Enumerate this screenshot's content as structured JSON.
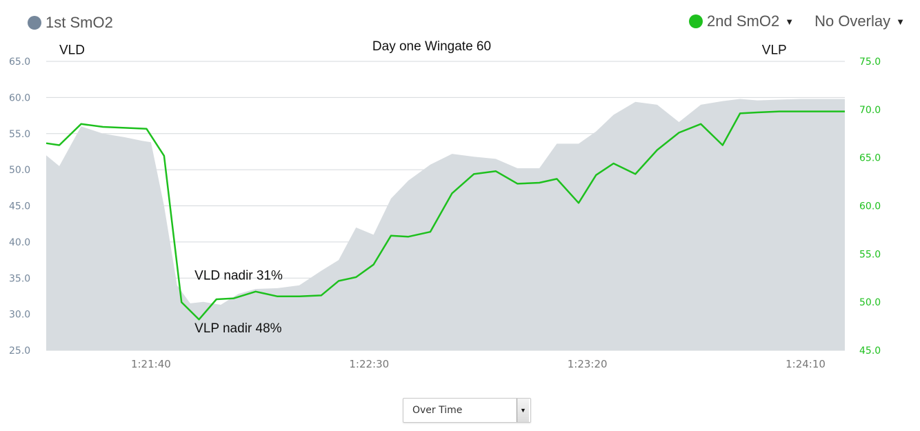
{
  "legend": {
    "first_label": "1st SmO2",
    "second_label": "2nd SmO2",
    "overlay_label": "No Overlay"
  },
  "controls": {
    "mode_value": "Over Time"
  },
  "colors": {
    "first_series": "#75879b",
    "second_series": "#1ec01e",
    "area_fill": "#d7dce0",
    "grid": "#d4d8dc",
    "left_axis_text": "#75879b",
    "right_axis_text": "#1ec01e"
  },
  "icons": {
    "caret": "triangle-down-icon",
    "select_button": "chevron-down-icon"
  },
  "chart_data": {
    "type": "area",
    "title": "Day one Wingate 60",
    "x_ticks": [
      "1:21:40",
      "1:22:30",
      "1:23:20",
      "1:24:10"
    ],
    "x_tick_seconds": [
      100,
      150,
      200,
      250
    ],
    "xlim_seconds": [
      76,
      259
    ],
    "y_left": {
      "ylim": [
        25,
        65
      ],
      "ticks": [
        "25.0",
        "30.0",
        "35.0",
        "40.0",
        "45.0",
        "50.0",
        "55.0",
        "60.0",
        "65.0"
      ]
    },
    "y_right": {
      "ylim": [
        45,
        75
      ],
      "ticks": [
        "45.0",
        "50.0",
        "55.0",
        "60.0",
        "65.0",
        "70.0",
        "75.0"
      ]
    },
    "annotations": [
      {
        "text": "VLD",
        "x": 79,
        "y": 66
      },
      {
        "text": "VLP",
        "x": 240,
        "y": 66
      },
      {
        "text": "VLD nadir 31%",
        "x": 110,
        "y": 34.8
      },
      {
        "text": "VLP nadir 48%",
        "x": 110,
        "y": 27.5
      }
    ],
    "series": [
      {
        "name": "1st SmO2",
        "axis": "left",
        "style": "area",
        "x": [
          76,
          79,
          84,
          89,
          94,
          98,
          100,
          103,
          106,
          109,
          112,
          116,
          120,
          124,
          129,
          134,
          139,
          143,
          147,
          151,
          155,
          159,
          164,
          169,
          174,
          179,
          184,
          189,
          193,
          198,
          202,
          206,
          211,
          216,
          221,
          226,
          231,
          235,
          239,
          244,
          249,
          254,
          259
        ],
        "values": [
          52,
          50.5,
          56,
          55,
          54.5,
          54,
          53.8,
          45,
          34,
          31.5,
          31.7,
          31.3,
          32.8,
          33.5,
          33.6,
          34,
          36,
          37.5,
          42,
          41,
          46,
          48.5,
          50.7,
          52.2,
          51.8,
          51.5,
          50.2,
          50.2,
          53.6,
          53.6,
          55.3,
          57.6,
          59.4,
          59,
          56.6,
          59,
          59.5,
          59.8,
          59.6,
          59.7,
          59.8,
          59.8,
          59.8
        ]
      },
      {
        "name": "2nd SmO2",
        "axis": "right",
        "style": "line",
        "x": [
          76,
          79,
          84,
          89,
          94,
          99,
          103,
          107,
          111,
          115,
          119,
          124,
          129,
          134,
          139,
          143,
          147,
          151,
          155,
          159,
          164,
          169,
          174,
          179,
          184,
          189,
          193,
          198,
          202,
          206,
          211,
          216,
          221,
          226,
          231,
          235,
          239,
          244,
          249,
          254,
          259
        ],
        "values": [
          66.5,
          66.3,
          68.5,
          68.2,
          68.1,
          68,
          65.2,
          50,
          48.2,
          50.3,
          50.4,
          51.1,
          50.6,
          50.6,
          50.7,
          52.2,
          52.6,
          53.9,
          56.9,
          56.8,
          57.3,
          61.3,
          63.3,
          63.6,
          62.3,
          62.4,
          62.8,
          60.3,
          63.2,
          64.4,
          63.3,
          65.8,
          67.6,
          68.5,
          66.3,
          69.6,
          69.7,
          69.8,
          69.8,
          69.8,
          69.8
        ]
      }
    ]
  }
}
